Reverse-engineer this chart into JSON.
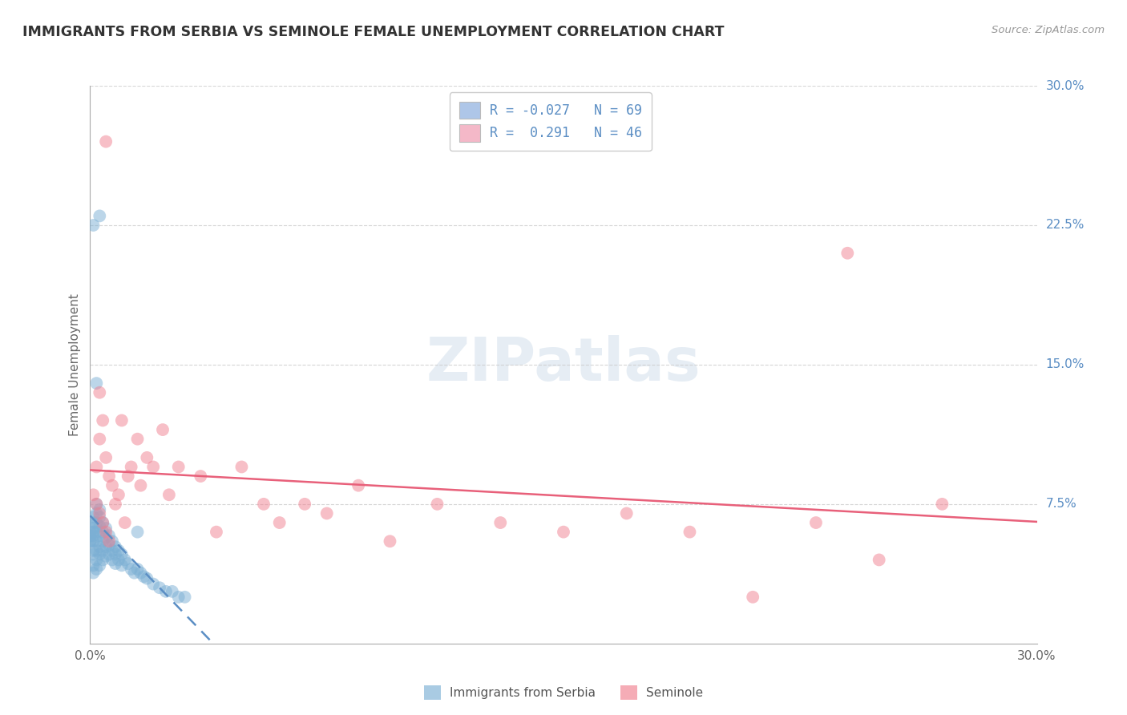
{
  "title": "IMMIGRANTS FROM SERBIA VS SEMINOLE FEMALE UNEMPLOYMENT CORRELATION CHART",
  "source": "Source: ZipAtlas.com",
  "ylabel": "Female Unemployment",
  "xlim": [
    0.0,
    0.3
  ],
  "ylim": [
    0.0,
    0.3
  ],
  "legend_entries": [
    {
      "label": "R = -0.027",
      "n": "N = 69",
      "color": "#aec6e8"
    },
    {
      "label": "R =  0.291",
      "n": "N = 46",
      "color": "#f4b8c8"
    }
  ],
  "series1_color": "#7bafd4",
  "series2_color": "#f08090",
  "line1_color": "#5b8ec4",
  "line2_color": "#e8607a",
  "background_color": "#ffffff",
  "grid_color": "#cccccc",
  "serbia_x": [
    0.0,
    0.0,
    0.0,
    0.001,
    0.001,
    0.001,
    0.001,
    0.001,
    0.001,
    0.001,
    0.001,
    0.001,
    0.002,
    0.002,
    0.002,
    0.002,
    0.002,
    0.002,
    0.002,
    0.002,
    0.003,
    0.003,
    0.003,
    0.003,
    0.003,
    0.003,
    0.003,
    0.004,
    0.004,
    0.004,
    0.004,
    0.004,
    0.005,
    0.005,
    0.005,
    0.005,
    0.006,
    0.006,
    0.006,
    0.007,
    0.007,
    0.007,
    0.008,
    0.008,
    0.008,
    0.009,
    0.009,
    0.01,
    0.01,
    0.011,
    0.012,
    0.013,
    0.014,
    0.015,
    0.016,
    0.017,
    0.018,
    0.02,
    0.022,
    0.024,
    0.026,
    0.028,
    0.03,
    0.003,
    0.002,
    0.001,
    0.001,
    0.015,
    0.0
  ],
  "serbia_y": [
    0.06,
    0.058,
    0.055,
    0.068,
    0.065,
    0.062,
    0.058,
    0.055,
    0.05,
    0.048,
    0.042,
    0.038,
    0.075,
    0.07,
    0.065,
    0.06,
    0.055,
    0.05,
    0.045,
    0.04,
    0.072,
    0.068,
    0.063,
    0.058,
    0.052,
    0.048,
    0.042,
    0.065,
    0.06,
    0.055,
    0.05,
    0.045,
    0.062,
    0.057,
    0.052,
    0.047,
    0.058,
    0.053,
    0.048,
    0.055,
    0.05,
    0.045,
    0.052,
    0.048,
    0.043,
    0.05,
    0.045,
    0.048,
    0.042,
    0.045,
    0.043,
    0.04,
    0.038,
    0.04,
    0.038,
    0.036,
    0.035,
    0.032,
    0.03,
    0.028,
    0.028,
    0.025,
    0.025,
    0.23,
    0.14,
    0.225,
    0.06,
    0.06,
    0.055
  ],
  "seminole_x": [
    0.001,
    0.002,
    0.002,
    0.003,
    0.003,
    0.004,
    0.004,
    0.005,
    0.005,
    0.006,
    0.006,
    0.007,
    0.008,
    0.009,
    0.01,
    0.011,
    0.012,
    0.013,
    0.015,
    0.016,
    0.018,
    0.02,
    0.023,
    0.025,
    0.028,
    0.035,
    0.04,
    0.048,
    0.055,
    0.06,
    0.068,
    0.075,
    0.085,
    0.095,
    0.11,
    0.13,
    0.15,
    0.17,
    0.19,
    0.21,
    0.23,
    0.25,
    0.27,
    0.005,
    0.003,
    0.24
  ],
  "seminole_y": [
    0.08,
    0.095,
    0.075,
    0.11,
    0.07,
    0.12,
    0.065,
    0.1,
    0.06,
    0.09,
    0.055,
    0.085,
    0.075,
    0.08,
    0.12,
    0.065,
    0.09,
    0.095,
    0.11,
    0.085,
    0.1,
    0.095,
    0.115,
    0.08,
    0.095,
    0.09,
    0.06,
    0.095,
    0.075,
    0.065,
    0.075,
    0.07,
    0.085,
    0.055,
    0.075,
    0.065,
    0.06,
    0.07,
    0.06,
    0.025,
    0.065,
    0.045,
    0.075,
    0.27,
    0.135,
    0.21
  ]
}
